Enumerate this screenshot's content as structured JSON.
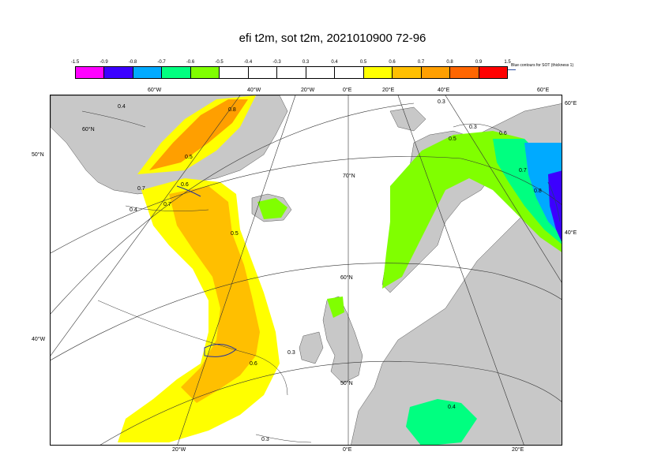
{
  "title": "efi t2m, sot t2m, 2021010900 72-96",
  "legend": {
    "ticks": [
      "-1.5",
      "-0.9",
      "-0.8",
      "-0.7",
      "-0.6",
      "-0.5",
      "-0.4",
      "-0.3",
      "0.3",
      "0.4",
      "0.5",
      "0.6",
      "0.7",
      "0.8",
      "0.9",
      "1.5"
    ],
    "colors": [
      "#ff00ff",
      "#3c00ff",
      "#00aaff",
      "#00ff80",
      "#80ff00",
      "#ffffff",
      "#ffffff",
      "#ffffff",
      "#ffffff",
      "#ffffff",
      "#ffff00",
      "#ffbf00",
      "#ff9f00",
      "#ff6600",
      "#ff0000"
    ],
    "sot_label": "Blue contours for SOT (thickness 1)"
  },
  "map": {
    "top_labels": [
      "60°W",
      "40°W",
      "20°W",
      "0°E",
      "20°E",
      "40°E",
      "60°E"
    ],
    "bottom_labels": [
      "20°W",
      "0°E",
      "20°E"
    ],
    "left_labels": [
      "50°N",
      "40°W"
    ],
    "right_labels": [
      "60°E",
      "40°E"
    ],
    "interior_labels": [
      "60°N",
      "70°N",
      "60°N",
      "50°N"
    ],
    "contour_labels": [
      "0.4",
      "0.5",
      "0.7",
      "0.8",
      "0.6",
      "0.7",
      "0.5",
      "0.4",
      "0.3",
      "0.3",
      "0.5",
      "0.6",
      "0.7",
      "0.8",
      "0.6",
      "0.3",
      "0.3",
      "0.4"
    ]
  }
}
